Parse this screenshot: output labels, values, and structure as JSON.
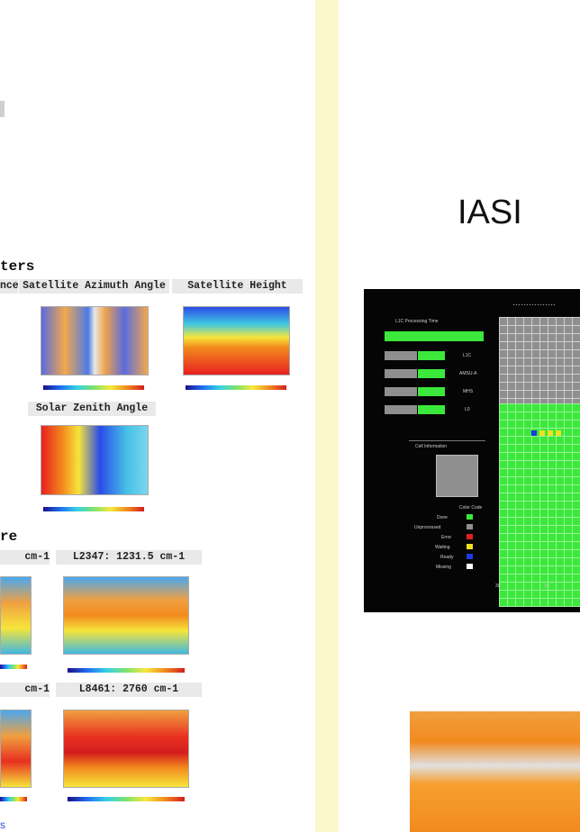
{
  "left": {
    "title": "",
    "geo_section": "ters",
    "geo_tabs": [
      "nce",
      "Satellite Azimuth Angle",
      "Satellite Height",
      "Solar Zenith Angle"
    ],
    "temp_section": "re",
    "temp_tabs": [
      "cm-1",
      "L2347: 1231.5 cm-1",
      "cm-1",
      "L8461: 2760 cm-1"
    ],
    "link_text": "s"
  },
  "right": {
    "instrument": "IASI",
    "panel": {
      "labels": [
        "L1C Processing Time",
        "L1C",
        "AMSU-A",
        "MHS",
        "L0",
        "Cell Information",
        "Color Code",
        "Done",
        "Unprocessed",
        "Error",
        "Waiting",
        "Ready",
        "Missing"
      ],
      "legend_colors": [
        "#3be83b",
        "#8f8f8f",
        "#e02020",
        "#f0e020",
        "#1e3ae0",
        "#ffffff"
      ],
      "axis_labels": [
        "30",
        "15"
      ]
    }
  }
}
